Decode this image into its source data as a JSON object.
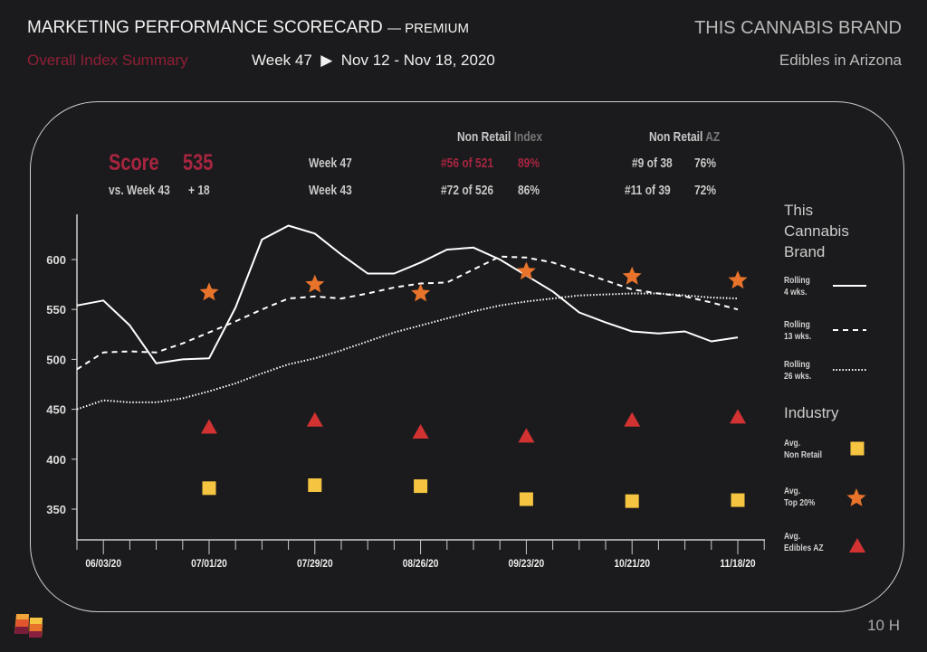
{
  "header": {
    "title": "MARKETING PERFORMANCE SCORECARD",
    "title_suffix": "— PREMIUM",
    "brand": "THIS CANNABIS BRAND",
    "subtitle": "Overall Index Summary",
    "week_label": "Week 47",
    "date_range": "Nov 12 - Nov 18, 2020",
    "market": "Edibles in Arizona"
  },
  "stats": {
    "score_label": "Score",
    "score_value": "535",
    "vs_label": "vs. Week 43",
    "vs_value": "+ 18",
    "col1_header_a": "Non Retail",
    "col1_header_b": "Index",
    "col2_header_a": "Non Retail",
    "col2_header_b": "AZ",
    "rows": [
      {
        "week": "Week 47",
        "idx_rank": "#56 of 521",
        "idx_pct": "89%",
        "az_rank": "#9 of 38",
        "az_pct": "76%"
      },
      {
        "week": "Week 43",
        "idx_rank": "#72 of 526",
        "idx_pct": "86%",
        "az_rank": "#11 of 39",
        "az_pct": "72%"
      }
    ]
  },
  "legend": {
    "brand_header": "This Cannabis Brand",
    "brand_items": [
      {
        "l1": "Rolling",
        "l2": "4 wks.",
        "style": "solid"
      },
      {
        "l1": "Rolling",
        "l2": "13 wks.",
        "style": "dashed"
      },
      {
        "l1": "Rolling",
        "l2": "26 wks.",
        "style": "dotted"
      }
    ],
    "industry_header": "Industry",
    "industry_items": [
      {
        "l1": "Avg.",
        "l2": "Non Retail",
        "marker": "square",
        "color": "#f5c542"
      },
      {
        "l1": "Avg.",
        "l2": "Top 20%",
        "marker": "star",
        "color": "#e8732a"
      },
      {
        "l1": "Avg.",
        "l2": "Edibles AZ",
        "marker": "triangle",
        "color": "#d23232"
      }
    ]
  },
  "footer": {
    "page": "10 H",
    "logo": "logo-flags"
  },
  "chart_data": {
    "type": "line",
    "x_start": "05/27/20",
    "x_step": "1 week",
    "x_tick_labels": [
      "06/03/20",
      "07/01/20",
      "07/29/20",
      "08/26/20",
      "09/23/20",
      "10/21/20",
      "11/18/20"
    ],
    "y_ticks": [
      350,
      400,
      450,
      500,
      550,
      600
    ],
    "ylim": [
      330,
      650
    ],
    "grid": false,
    "series": [
      {
        "name": "Rolling 4 wks.",
        "style": "solid",
        "color": "#ffffff",
        "values": [
          554,
          559,
          534,
          496,
          500,
          501,
          552,
          620,
          634,
          626,
          605,
          586,
          586,
          597,
          610,
          612,
          600,
          584,
          568,
          547,
          537,
          528,
          526,
          528,
          518,
          522
        ]
      },
      {
        "name": "Rolling 13 wks.",
        "style": "dashed",
        "color": "#ffffff",
        "values": [
          490,
          507,
          508,
          507,
          516,
          527,
          538,
          550,
          561,
          563,
          561,
          566,
          572,
          576,
          577,
          590,
          603,
          602,
          597,
          588,
          579,
          570,
          566,
          563,
          557,
          550
        ]
      },
      {
        "name": "Rolling 26 wks.",
        "style": "dotted",
        "color": "#ffffff",
        "values": [
          450,
          459,
          457,
          457,
          461,
          468,
          476,
          486,
          495,
          501,
          509,
          518,
          527,
          534,
          541,
          548,
          554,
          558,
          561,
          564,
          565,
          566,
          566,
          564,
          562,
          561
        ]
      }
    ],
    "markers": {
      "dates": [
        "07/01/20",
        "07/29/20",
        "08/26/20",
        "09/23/20",
        "10/21/20",
        "11/18/20"
      ],
      "Avg. Top 20%": [
        567,
        575,
        566,
        588,
        583,
        579
      ],
      "Avg. Edibles AZ": [
        432,
        439,
        427,
        423,
        439,
        442
      ],
      "Avg. Non Retail": [
        371,
        374,
        373,
        360,
        358,
        359
      ]
    }
  }
}
